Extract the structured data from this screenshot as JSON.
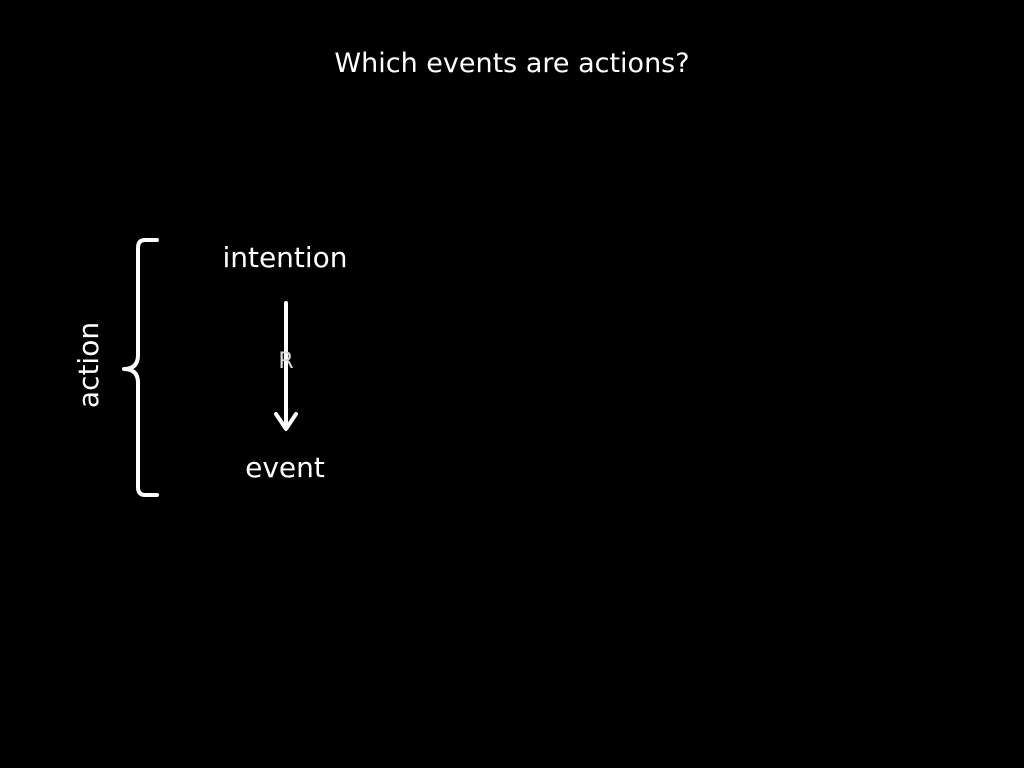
{
  "slide": {
    "title": "Which events are actions?"
  },
  "diagram": {
    "top_node": "intention",
    "bottom_node": "event",
    "relation": "R",
    "bracket_label": "action",
    "colors": {
      "background": "#000000",
      "foreground": "#ffffff",
      "relation_label": "#d9d9d9"
    }
  }
}
